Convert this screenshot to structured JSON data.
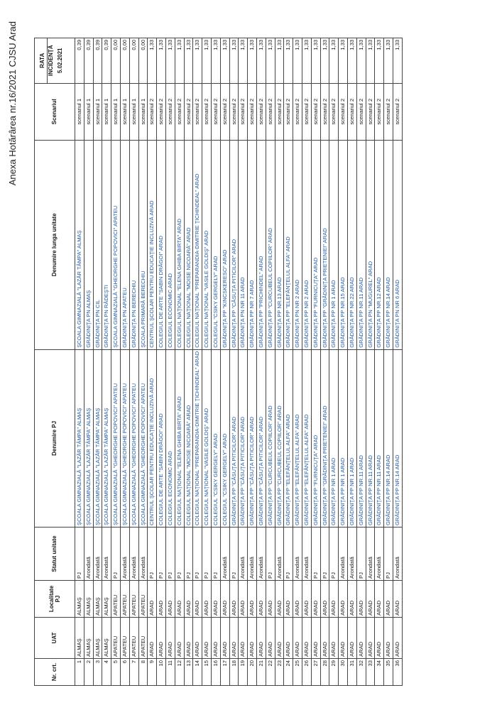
{
  "caption": "Anexa Hotărârea nr.16/2021 CJSU Arad",
  "headers": {
    "nr": "Nr. crt.",
    "uat": "UAT",
    "localitate": "Localitate PJ",
    "statut": "Statut unitate",
    "denumire_pj": "Denumire PJ",
    "denumire_lunga": "Denumire lunga unitate",
    "scenariul": "Scenariul",
    "rata_title": "RATA",
    "rata_sub": "INCIDENȚĂ",
    "rata_date": "5.02.2021"
  },
  "rows": [
    {
      "nr": "1",
      "uat": "ALMAŞ",
      "loc": "ALMAŞ",
      "statut": "PJ",
      "pj": "ŞCOALA GIMNAZIALĂ \"LAZĂR TÂMPA\" ALMAŞ",
      "lung": "ŞCOALA GIMNAZIALĂ \"LAZĂR TÂMPA\" ALMAŞ",
      "scen": "scenariul 1",
      "rata": "0,39"
    },
    {
      "nr": "2",
      "uat": "ALMAŞ",
      "loc": "ALMAŞ",
      "statut": "Arondată",
      "pj": "ŞCOALA GIMNAZIALĂ \"LAZĂR TÂMPA\" ALMAŞ",
      "lung": "GRĂDINIŢA PN ALMAŞ",
      "scen": "scenariul 1",
      "rata": "0,39"
    },
    {
      "nr": "3",
      "uat": "ALMAŞ",
      "loc": "ALMAŞ",
      "statut": "Arondată",
      "pj": "ŞCOALA GIMNAZIALĂ \"LAZĂR TÂMPA\" ALMAŞ",
      "lung": "GRĂDINIŢA PN CIL",
      "scen": "scenariul 1",
      "rata": "0,39"
    },
    {
      "nr": "4",
      "uat": "ALMAŞ",
      "loc": "ALMAŞ",
      "statut": "Arondată",
      "pj": "ŞCOALA GIMNAZIALĂ \"LAZĂR TÂMPA\" ALMAŞ",
      "lung": "GRĂDINIŢA PN RĂDEŞTI",
      "scen": "scenariul 1",
      "rata": "0,39"
    },
    {
      "nr": "5",
      "uat": "APATEU",
      "loc": "APATEU",
      "statut": "PJ",
      "pj": "ŞCOALA GIMNAZIALĂ \"GHEORGHE POPOVICI\" APATEU",
      "lung": "ŞCOALA GIMNAZIALĂ \"GHEORGHE POPOVICI\" APATEU",
      "scen": "scenariul 1",
      "rata": "0,00"
    },
    {
      "nr": "6",
      "uat": "APATEU",
      "loc": "APATEU",
      "statut": "Arondată",
      "pj": "ŞCOALA GIMNAZIALĂ \"GHEORGHE POPOVICI\" APATEU",
      "lung": "GRĂDINIŢA PN APATEU",
      "scen": "scenariul 1",
      "rata": "0,00"
    },
    {
      "nr": "7",
      "uat": "APATEU",
      "loc": "APATEU",
      "statut": "Arondată",
      "pj": "ŞCOALA GIMNAZIALĂ \"GHEORGHE POPOVICI\" APATEU",
      "lung": "GRĂDINIŢA PN BERECHIU",
      "scen": "scenariul 1",
      "rata": "0,00"
    },
    {
      "nr": "8",
      "uat": "APATEU",
      "loc": "APATEU",
      "statut": "Arondată",
      "pj": "ŞCOALA GIMNAZIALĂ \"GHEORGHE POPOVICI\" APATEU",
      "lung": "ŞCOALA PRIMARĂ BERECHIU",
      "scen": "scenariul 1",
      "rata": "0,00"
    },
    {
      "nr": "9",
      "uat": "ARAD",
      "loc": "ARAD",
      "statut": "PJ",
      "pj": "CENTRUL ŞCOLAR PENTRU EDUCAŢIE INCLUZIVĂ ARAD",
      "lung": "CENTRUL ŞCOLAR PENTRU EDUCAŢIE INCLUZIVĂ ARAD",
      "scen": "scenariul 2",
      "rata": "1,33"
    },
    {
      "nr": "10",
      "uat": "ARAD",
      "loc": "ARAD",
      "statut": "PJ",
      "pj": "COLEGIUL DE ARTE \"SABIN DRĂGOI\" ARAD",
      "lung": "COLEGIUL DE ARTE \"SABIN DRĂGOI\" ARAD",
      "scen": "scenariul 2",
      "rata": "1,33"
    },
    {
      "nr": "11",
      "uat": "ARAD",
      "loc": "ARAD",
      "statut": "PJ",
      "pj": "COLEGIUL ECONOMIC ARAD",
      "lung": "COLEGIUL ECONOMIC ARAD",
      "scen": "scenariul 2",
      "rata": "1,33"
    },
    {
      "nr": "12",
      "uat": "ARAD",
      "loc": "ARAD",
      "statut": "PJ",
      "pj": "COLEGIUL NAŢIONAL \"ELENA GHIBA BIRTA\" ARAD",
      "lung": "COLEGIUL NAŢIONAL \"ELENA GHIBA BIRTA\" ARAD",
      "scen": "scenariul 2",
      "rata": "1,33"
    },
    {
      "nr": "13",
      "uat": "ARAD",
      "loc": "ARAD",
      "statut": "PJ",
      "pj": "COLEGIUL NAŢIONAL \"MOISE NICOARĂ\" ARAD",
      "lung": "COLEGIUL NAŢIONAL \"MOISE NICOARĂ\" ARAD",
      "scen": "scenariul 2",
      "rata": "1,33"
    },
    {
      "nr": "14",
      "uat": "ARAD",
      "loc": "ARAD",
      "statut": "PJ",
      "pj": "COLEGIUL NAŢIONAL \"PREPARANDIA-DIMITRIE ŢICHINDEAL\" ARAD",
      "lung": "COLEGIUL NAŢIONAL \"PREPARANDIA-DIMITRIE ŢICHINDEAL\" ARAD",
      "scen": "scenariul 2",
      "rata": "1,33"
    },
    {
      "nr": "15",
      "uat": "ARAD",
      "loc": "ARAD",
      "statut": "PJ",
      "pj": "COLEGIUL NAŢIONAL \"VASILE GOLDIŞ\" ARAD",
      "lung": "COLEGIUL NAŢIONAL \"VASILE GOLDIŞ\" ARAD",
      "scen": "scenariul 2",
      "rata": "1,33"
    },
    {
      "nr": "16",
      "uat": "ARAD",
      "loc": "ARAD",
      "statut": "PJ",
      "pj": "COLEGIUL \"CSIKY GERGELY\" ARAD",
      "lung": "COLEGIUL \"CSIKY GERGELY\" ARAD",
      "scen": "scenariul 2",
      "rata": "1,33"
    },
    {
      "nr": "17",
      "uat": "ARAD",
      "loc": "ARAD",
      "statut": "Arondată",
      "pj": "COLEGIUL \"CSIKY GERGELY\" ARAD",
      "lung": "GRĂDINIŢA PP \"KINCSKERESO\" ARAD",
      "scen": "scenariul 2",
      "rata": "1,33"
    },
    {
      "nr": "18",
      "uat": "ARAD",
      "loc": "ARAD",
      "statut": "PJ",
      "pj": "GRĂDINIŢA PP \"CĂSUŢA PITICILOR\" ARAD",
      "lung": "GRĂDINIŢA PP \"CĂSUŢA PITICILOR\" ARAD",
      "scen": "scenariul 2",
      "rata": "1,33"
    },
    {
      "nr": "19",
      "uat": "ARAD",
      "loc": "ARAD",
      "statut": "Arondată",
      "pj": "GRĂDINIŢA PP \"CĂSUŢA PITICILOR\" ARAD",
      "lung": "GRĂDINIŢA PN NR 11 ARAD",
      "scen": "scenariul 2",
      "rata": "1,33"
    },
    {
      "nr": "20",
      "uat": "ARAD",
      "loc": "ARAD",
      "statut": "Arondată",
      "pj": "GRĂDINIŢA PP \"CĂSUŢA PITICILOR\" ARAD",
      "lung": "GRĂDINIŢA PP NR 7 ARAD",
      "scen": "scenariul 2",
      "rata": "1,33"
    },
    {
      "nr": "21",
      "uat": "ARAD",
      "loc": "ARAD",
      "statut": "Arondată",
      "pj": "GRĂDINIŢA PP \"CĂSUŢA PITICILOR\" ARAD",
      "lung": "GRĂDINIŢA PP \"PRICHINDEL\" ARAD",
      "scen": "scenariul 2",
      "rata": "1,33"
    },
    {
      "nr": "22",
      "uat": "ARAD",
      "loc": "ARAD",
      "statut": "PJ",
      "pj": "GRĂDINIŢA PP \"CURCUBEUL COPIILOR\" ARAD",
      "lung": "GRĂDINIŢA PP \"CURCUBEUL COPIILOR\" ARAD",
      "scen": "scenariul 2",
      "rata": "1,33"
    },
    {
      "nr": "23",
      "uat": "ARAD",
      "loc": "ARAD",
      "statut": "Arondată",
      "pj": "GRĂDINIŢA PP \"CURCUBEUL COPIILOR\" ARAD",
      "lung": "GRĂDINIŢA PP NR.13 ARAD",
      "scen": "scenariul 2",
      "rata": "1,33"
    },
    {
      "nr": "24",
      "uat": "ARAD",
      "loc": "ARAD",
      "statut": "PJ",
      "pj": "GRĂDINIŢA PP \"ELEFĂNŢELUL ALFA\" ARAD",
      "lung": "GRĂDINIŢA PP \"ELEFĂNŢELUL ALFA\" ARAD",
      "scen": "scenariul 2",
      "rata": "1,33"
    },
    {
      "nr": "25",
      "uat": "ARAD",
      "loc": "ARAD",
      "statut": "Arondată",
      "pj": "GRĂDINIŢA PP \"ELEFĂNŢELUL ALFA\" ARAD",
      "lung": "GRĂDINIŢA PN NR 2 ARAD",
      "scen": "scenariul 2",
      "rata": "1,33"
    },
    {
      "nr": "26",
      "uat": "ARAD",
      "loc": "ARAD",
      "statut": "Arondată",
      "pj": "GRĂDINIŢA PP \"ELEFĂNŢELUL ALFA\" ARAD",
      "lung": "GRĂDINIŢA PP NR 2 ARAD",
      "scen": "scenariul 2",
      "rata": "1,33"
    },
    {
      "nr": "27",
      "uat": "ARAD",
      "loc": "ARAD",
      "statut": "PJ",
      "pj": "GRĂDINIŢA PP \"FURNICUŢA\" ARAD",
      "lung": "GRĂDINIŢA PP \"FURNICUŢA\" ARAD",
      "scen": "scenariul 2",
      "rata": "1,33"
    },
    {
      "nr": "28",
      "uat": "ARAD",
      "loc": "ARAD",
      "statut": "PJ",
      "pj": "GRĂDINIŢA PP \"GRĂDINIŢA PRIETENIEI\" ARAD",
      "lung": "GRĂDINIŢA PP \"GRĂDINIŢA PRIETENIEI\" ARAD",
      "scen": "scenariul 2",
      "rata": "1,33"
    },
    {
      "nr": "29",
      "uat": "ARAD",
      "loc": "ARAD",
      "statut": "PJ",
      "pj": "GRĂDINIŢA PP NR 1 ARAD",
      "lung": "GRĂDINIŢA PP NR 1 ARAD",
      "scen": "scenariul 2",
      "rata": "1,33"
    },
    {
      "nr": "30",
      "uat": "ARAD",
      "loc": "ARAD",
      "statut": "Arondată",
      "pj": "GRĂDINIŢA PP NR 1 ARAD",
      "lung": "GRĂDINIŢA PP NR.15 ARAD",
      "scen": "scenariul 2",
      "rata": "1,33"
    },
    {
      "nr": "31",
      "uat": "ARAD",
      "loc": "ARAD",
      "statut": "Arondată",
      "pj": "GRĂDINIŢA PP NR 1 ARAD",
      "lung": "GRĂDINIŢA PP NR.22 ARAD",
      "scen": "scenariul 2",
      "rata": "1,33"
    },
    {
      "nr": "32",
      "uat": "ARAD",
      "loc": "ARAD",
      "statut": "PJ",
      "pj": "GRĂDINIŢA PP NR.11 ARAD",
      "lung": "GRĂDINIŢA PP NR.11 ARAD",
      "scen": "scenariul 2",
      "rata": "1,33"
    },
    {
      "nr": "33",
      "uat": "ARAD",
      "loc": "ARAD",
      "statut": "Arondată",
      "pj": "GRĂDINIŢA PP NR.11 ARAD",
      "lung": "GRĂDINIŢA PN \"MUGUREL\" ARAD",
      "scen": "scenariul 2",
      "rata": "1,33"
    },
    {
      "nr": "34",
      "uat": "ARAD",
      "loc": "ARAD",
      "statut": "Arondată",
      "pj": "GRĂDINIŢA PP NR.11 ARAD",
      "lung": "GRĂDINIŢA PP NR.12 ARAD",
      "scen": "scenariul 2",
      "rata": "1,33"
    },
    {
      "nr": "35",
      "uat": "ARAD",
      "loc": "ARAD",
      "statut": "PJ",
      "pj": "GRĂDINIŢA PP NR.14 ARAD",
      "lung": "GRĂDINIŢA PP NR.14 ARAD",
      "scen": "scenariul 2",
      "rata": "1,33"
    },
    {
      "nr": "36",
      "uat": "ARAD",
      "loc": "ARAD",
      "statut": "Arondată",
      "pj": "GRĂDINIŢA PP NR.14 ARAD",
      "lung": "GRĂDINIŢA PN NR 6 ARAD",
      "scen": "scenariul 2",
      "rata": "1,33"
    }
  ]
}
